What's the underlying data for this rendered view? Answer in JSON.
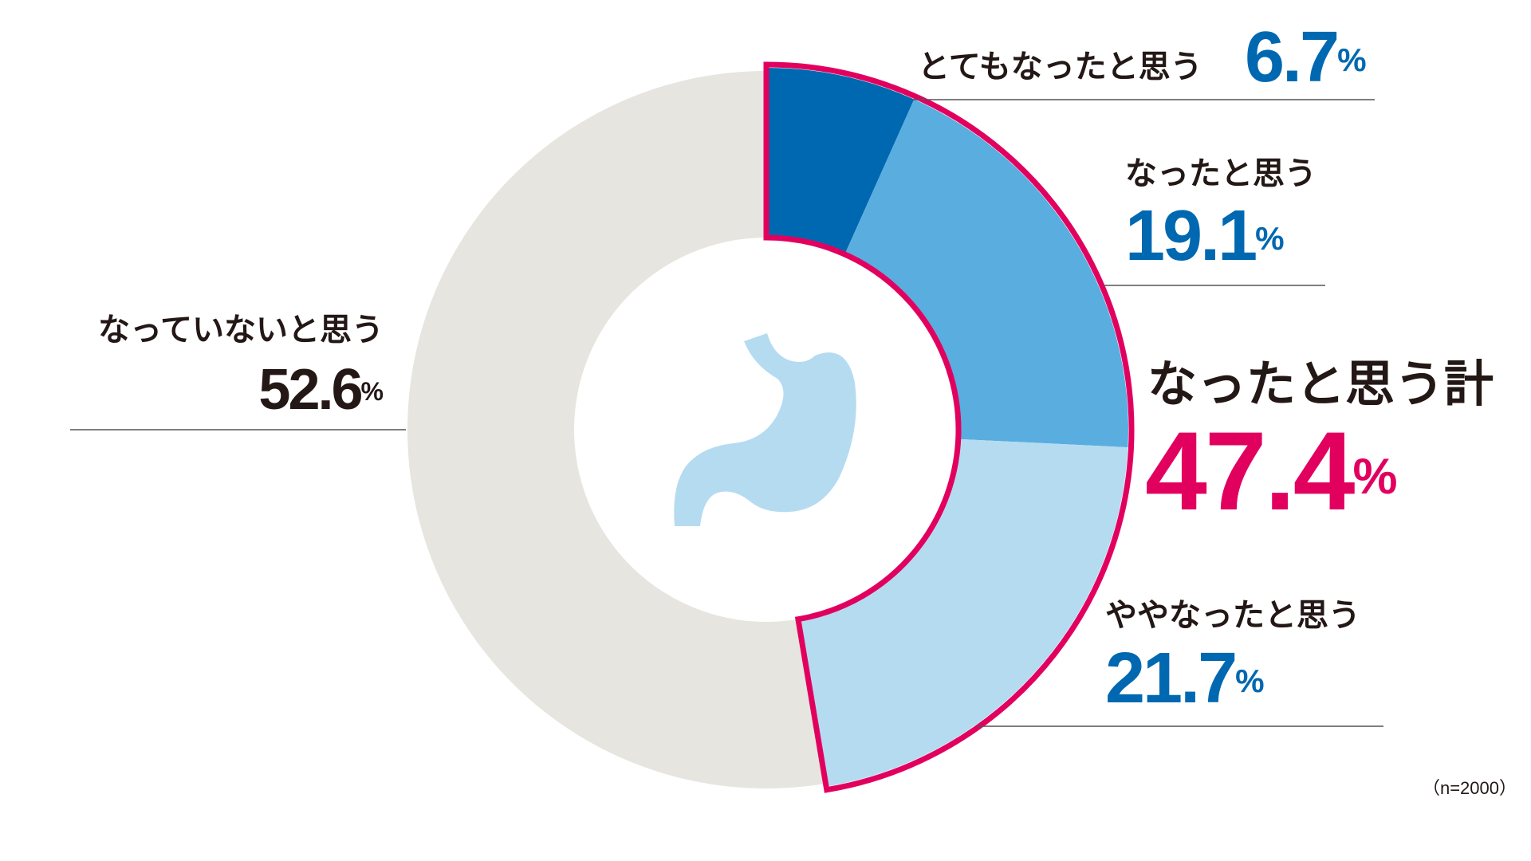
{
  "chart_data": {
    "type": "donut",
    "categories": [
      "とてもなったと思う",
      "なったと思う",
      "ややなったと思う",
      "なっていないと思う"
    ],
    "values": [
      6.7,
      19.1,
      21.7,
      52.6
    ],
    "unit": "%",
    "colors": [
      "#0068b0",
      "#5aaddf",
      "#b5dbf1",
      "#e6e5e0"
    ],
    "total_label": "なったと思う計",
    "total_value": 47.4,
    "highlight_color": "#e2005f",
    "note": "（n=2000）"
  }
}
